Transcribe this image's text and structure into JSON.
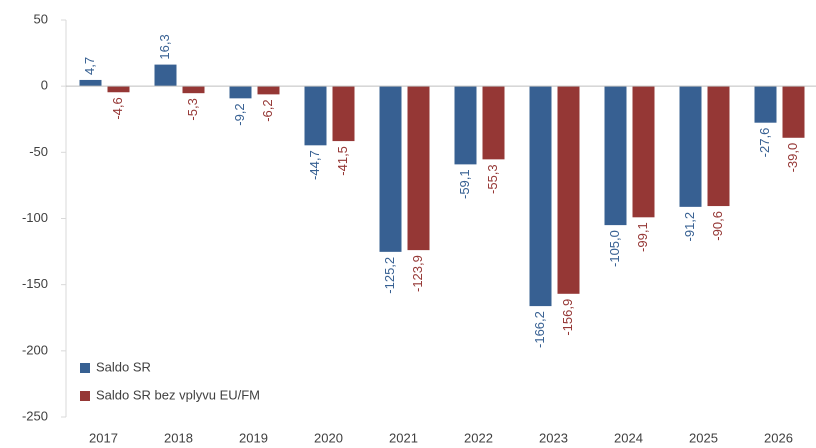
{
  "chart_data": {
    "type": "bar",
    "categories": [
      "2017",
      "2018",
      "2019",
      "2020",
      "2021",
      "2022",
      "2023",
      "2024",
      "2025",
      "2026"
    ],
    "series": [
      {
        "name": "Saldo SR",
        "color": "#376092",
        "values": [
          4.7,
          16.3,
          -9.2,
          -44.7,
          -125.2,
          -59.1,
          -166.2,
          -105.0,
          -91.2,
          -27.6
        ],
        "value_labels": [
          "4,7",
          "16,3",
          "-9,2",
          "-44,7",
          "-125,2",
          "-59,1",
          "-166,2",
          "-105,0",
          "-91,2",
          "-27,6"
        ]
      },
      {
        "name": "Saldo SR bez vplyvu EU/FM",
        "color": "#953735",
        "values": [
          -4.6,
          -5.3,
          -6.2,
          -41.5,
          -123.9,
          -55.3,
          -156.9,
          -99.1,
          -90.6,
          -39.0
        ],
        "value_labels": [
          "-4,6",
          "-5,3",
          "-6,2",
          "-41,5",
          "-123,9",
          "-55,3",
          "-156,9",
          "-99,1",
          "-90,6",
          "-39,0"
        ]
      }
    ],
    "ylim": [
      -250,
      50
    ],
    "yticks": [
      -250,
      -200,
      -150,
      -100,
      -50,
      0,
      50
    ],
    "grid": false,
    "legend": "lower left"
  }
}
